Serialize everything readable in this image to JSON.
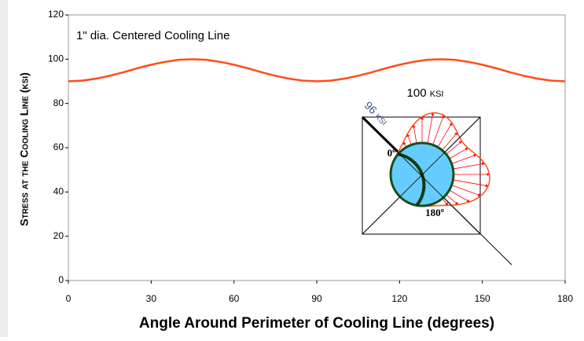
{
  "chart_data": {
    "type": "line",
    "annotation": "1\" dia. Centered Cooling Line",
    "x_label": "Angle Around Perimeter of Cooling Line (degrees)",
    "y_label": "Stress at the Cooling Line (ksi)",
    "inset_labels": [
      "100 ksi",
      "96 ksi",
      "0º",
      "180º"
    ],
    "x": [
      0,
      5,
      10,
      15,
      20,
      25,
      30,
      35,
      40,
      45,
      50,
      55,
      60,
      65,
      70,
      75,
      80,
      85,
      90,
      95,
      100,
      105,
      110,
      115,
      120,
      125,
      130,
      135,
      140,
      145,
      150,
      155,
      160,
      165,
      170,
      175,
      180
    ],
    "series": [
      {
        "color": "#ff4d1a",
        "values": [
          90,
          90.3,
          91.2,
          92.5,
          94.1,
          95.9,
          97.5,
          98.8,
          99.7,
          100,
          99.7,
          98.8,
          97.5,
          95.9,
          94.1,
          92.5,
          91.2,
          90.3,
          90,
          90.3,
          91.2,
          92.5,
          94.1,
          95.9,
          97.5,
          98.8,
          99.7,
          100,
          99.7,
          98.8,
          97.5,
          95.9,
          94.1,
          92.5,
          91.2,
          90.3,
          90
        ]
      }
    ],
    "xlim": [
      0,
      180
    ],
    "xticks": [
      0,
      30,
      60,
      90,
      120,
      150,
      180
    ],
    "ylim": [
      0,
      120
    ],
    "yticks": [
      0,
      20,
      40,
      60,
      80,
      100,
      120
    ]
  }
}
